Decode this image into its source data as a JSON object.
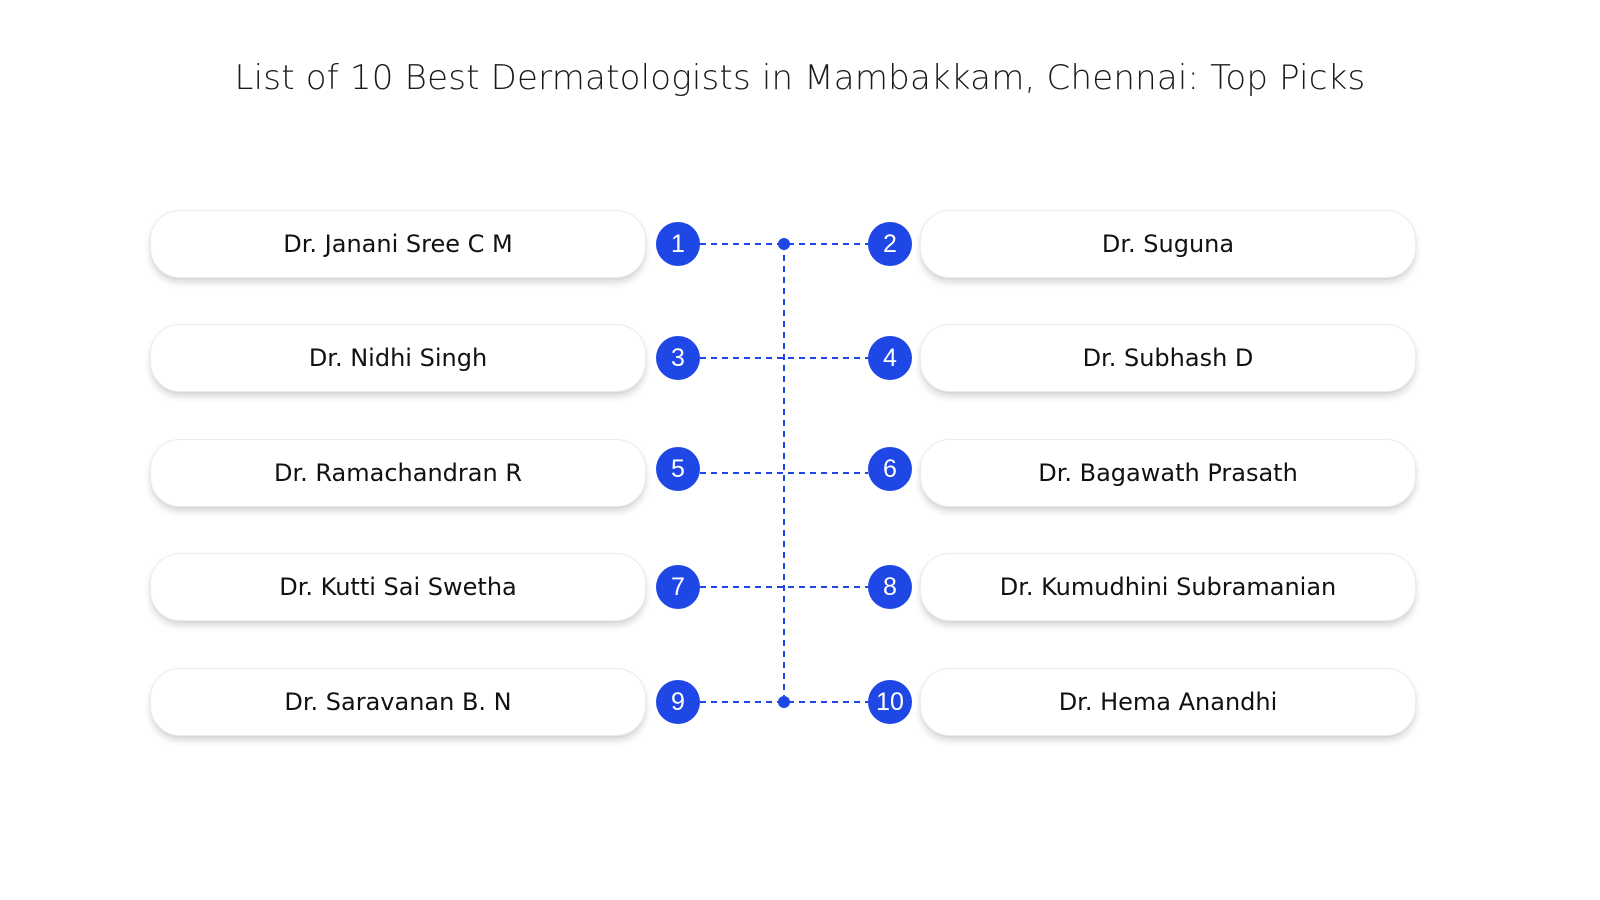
{
  "title": "List of 10 Best Dermatologists in Mambakkam, Chennai: Top Picks",
  "accent_color": "#1e47e6",
  "rows": [
    {
      "left": {
        "number": "1",
        "name": "Dr. Janani Sree C M"
      },
      "right": {
        "number": "2",
        "name": "Dr. Suguna"
      }
    },
    {
      "left": {
        "number": "3",
        "name": "Dr. Nidhi Singh"
      },
      "right": {
        "number": "4",
        "name": "Dr. Subhash D"
      }
    },
    {
      "left": {
        "number": "5",
        "name": "Dr. Ramachandran R"
      },
      "right": {
        "number": "6",
        "name": "Dr. Bagawath Prasath"
      }
    },
    {
      "left": {
        "number": "7",
        "name": "Dr. Kutti Sai Swetha"
      },
      "right": {
        "number": "8",
        "name": "Dr. Kumudhini Subramanian"
      }
    },
    {
      "left": {
        "number": "9",
        "name": "Dr. Saravanan B. N"
      },
      "right": {
        "number": "10",
        "name": "Dr. Hema Anandhi"
      }
    }
  ]
}
